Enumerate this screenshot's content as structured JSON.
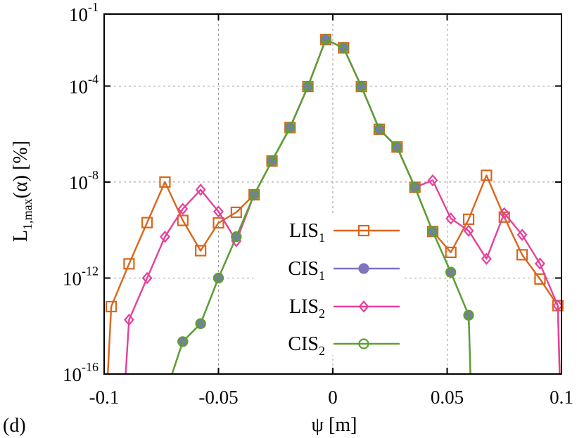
{
  "panel_label": "(d)",
  "chart_data": {
    "type": "line",
    "xlabel": "ψ [m]",
    "ylabel": {
      "base": "L",
      "subscript": "1,max",
      "rest": "(α) [%]"
    },
    "xlim": [
      -0.1,
      0.1
    ],
    "ylim_exponent": [
      -16,
      -1
    ],
    "yscale": "log",
    "grid": true,
    "legend_position": "center-right",
    "x_ticks": [
      {
        "value": -0.1,
        "label": "-0.1"
      },
      {
        "value": -0.05,
        "label": "-0.05"
      },
      {
        "value": 0,
        "label": "0"
      },
      {
        "value": 0.05,
        "label": "0.05"
      },
      {
        "value": 0.1,
        "label": "0.1"
      }
    ],
    "y_ticks": [
      {
        "exp": -1,
        "base": "10",
        "sup": "-1"
      },
      {
        "exp": -4,
        "base": "10",
        "sup": "-4"
      },
      {
        "exp": -8,
        "base": "10",
        "sup": "-8"
      },
      {
        "exp": -12,
        "base": "10",
        "sup": "-12"
      },
      {
        "exp": -16,
        "base": "10",
        "sup": "-16"
      }
    ],
    "series": [
      {
        "name": "LIS",
        "name_sub": "1",
        "color": "#d9661c",
        "marker": "square",
        "fill": "none",
        "points": [
          [
            -0.0984,
            -16.0
          ],
          [
            -0.0969,
            -13.19
          ],
          [
            -0.0891,
            -11.41
          ],
          [
            -0.0812,
            -9.69
          ],
          [
            -0.0734,
            -8.0
          ],
          [
            -0.0656,
            -9.6
          ],
          [
            -0.0578,
            -10.86
          ],
          [
            -0.05,
            -9.7
          ],
          [
            -0.0422,
            -9.26
          ],
          [
            -0.0344,
            -8.53
          ],
          [
            -0.0266,
            -7.12
          ],
          [
            -0.0187,
            -5.73
          ],
          [
            -0.0109,
            -4.02
          ],
          [
            -0.0031,
            -2.06
          ],
          [
            0.0047,
            -2.41
          ],
          [
            0.0125,
            -4.02
          ],
          [
            0.0203,
            -5.8
          ],
          [
            0.0281,
            -6.54
          ],
          [
            0.0359,
            -8.22
          ],
          [
            0.0437,
            -10.06
          ],
          [
            0.0516,
            -10.93
          ],
          [
            0.0594,
            -9.55
          ],
          [
            0.0672,
            -7.72
          ],
          [
            0.075,
            -9.46
          ],
          [
            0.0828,
            -11.03
          ],
          [
            0.0906,
            -12.04
          ],
          [
            0.0984,
            -13.15
          ],
          [
            0.0992,
            -16.0
          ]
        ]
      },
      {
        "name": "CIS",
        "name_sub": "1",
        "color": "#8073bf",
        "marker": "circle",
        "fill": "solid",
        "points": [
          [
            -0.0703,
            -16.0
          ],
          [
            -0.0656,
            -14.65
          ],
          [
            -0.0578,
            -13.9
          ],
          [
            -0.05,
            -12.0
          ],
          [
            -0.0422,
            -10.28
          ],
          [
            -0.0344,
            -8.53
          ],
          [
            -0.0266,
            -7.12
          ],
          [
            -0.0187,
            -5.73
          ],
          [
            -0.0109,
            -4.02
          ],
          [
            -0.0031,
            -2.06
          ],
          [
            0.0047,
            -2.41
          ],
          [
            0.0125,
            -4.02
          ],
          [
            0.0203,
            -5.8
          ],
          [
            0.0281,
            -6.54
          ],
          [
            0.0359,
            -8.22
          ],
          [
            0.0437,
            -10.06
          ],
          [
            0.0516,
            -11.76
          ],
          [
            0.0594,
            -13.55
          ],
          [
            0.0602,
            -16.0
          ]
        ]
      },
      {
        "name": "LIS",
        "name_sub": "2",
        "color": "#e6409a",
        "marker": "diamond",
        "fill": "none",
        "points": [
          [
            -0.0906,
            -16.0
          ],
          [
            -0.0891,
            -13.74
          ],
          [
            -0.0812,
            -12.0
          ],
          [
            -0.0734,
            -10.28
          ],
          [
            -0.0656,
            -9.12
          ],
          [
            -0.0578,
            -8.32
          ],
          [
            -0.05,
            -9.23
          ],
          [
            -0.0422,
            -10.46
          ],
          [
            -0.0344,
            -8.53
          ],
          [
            -0.0266,
            -7.12
          ],
          [
            -0.0187,
            -5.73
          ],
          [
            -0.0109,
            -4.02
          ],
          [
            -0.0031,
            -2.06
          ],
          [
            0.0047,
            -2.41
          ],
          [
            0.0125,
            -4.02
          ],
          [
            0.0203,
            -5.8
          ],
          [
            0.0281,
            -6.54
          ],
          [
            0.0359,
            -8.22
          ],
          [
            0.0437,
            -7.93
          ],
          [
            0.0516,
            -9.52
          ],
          [
            0.0594,
            -10.03
          ],
          [
            0.0672,
            -11.2
          ],
          [
            0.075,
            -9.3
          ],
          [
            0.0828,
            -10.2
          ],
          [
            0.0906,
            -11.4
          ],
          [
            0.0984,
            -13.15
          ],
          [
            0.0992,
            -16.0
          ]
        ]
      },
      {
        "name": "CIS",
        "name_sub": "2",
        "color": "#5ba12e",
        "marker": "circle",
        "fill": "none",
        "points": [
          [
            -0.0703,
            -16.0
          ],
          [
            -0.0656,
            -14.65
          ],
          [
            -0.0578,
            -13.9
          ],
          [
            -0.05,
            -12.0
          ],
          [
            -0.0422,
            -10.28
          ],
          [
            -0.0344,
            -8.53
          ],
          [
            -0.0266,
            -7.12
          ],
          [
            -0.0187,
            -5.73
          ],
          [
            -0.0109,
            -4.02
          ],
          [
            -0.0031,
            -2.06
          ],
          [
            0.0047,
            -2.41
          ],
          [
            0.0125,
            -4.02
          ],
          [
            0.0203,
            -5.8
          ],
          [
            0.0281,
            -6.54
          ],
          [
            0.0359,
            -8.22
          ],
          [
            0.0437,
            -10.06
          ],
          [
            0.0516,
            -11.76
          ],
          [
            0.0594,
            -13.55
          ],
          [
            0.0602,
            -16.0
          ]
        ]
      }
    ]
  }
}
